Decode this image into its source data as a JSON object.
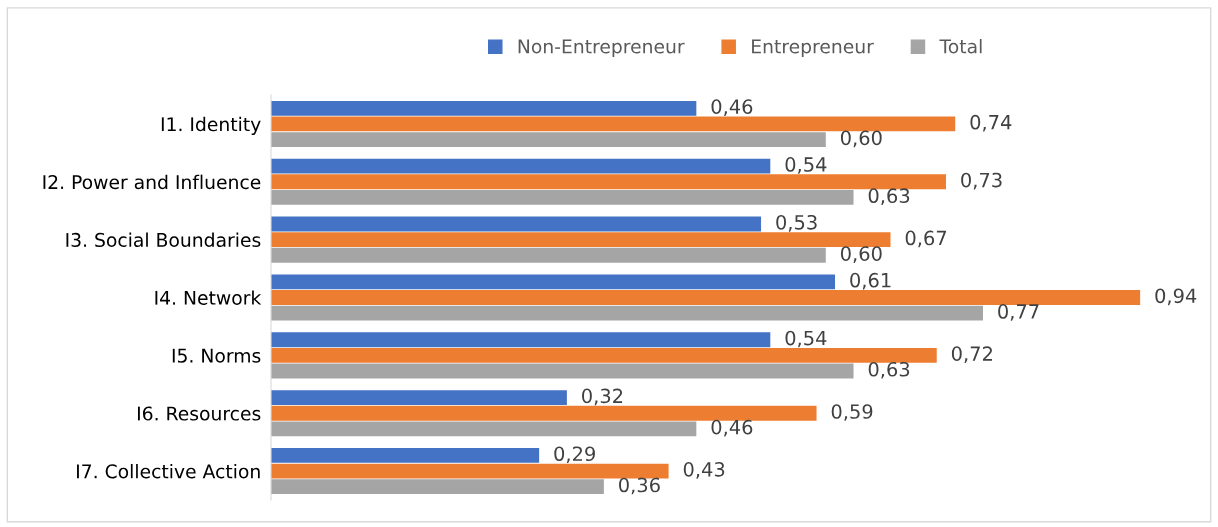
{
  "chart_data": {
    "type": "bar",
    "orientation": "horizontal",
    "categories": [
      "I1. Identity",
      "I2. Power and Influence",
      "I3. Social Boundaries",
      "I4. Network",
      "I5. Norms",
      "I6. Resources",
      "I7. Collective Action"
    ],
    "series": [
      {
        "name": "Non-Entrepreneur",
        "color": "#4472c4",
        "values": [
          0.46,
          0.54,
          0.53,
          0.61,
          0.54,
          0.32,
          0.29
        ],
        "value_labels": [
          "0,46",
          "0,54",
          "0,53",
          "0,61",
          "0,54",
          "0,32",
          "0,29"
        ]
      },
      {
        "name": "Entrepreneur",
        "color": "#ed7d31",
        "values": [
          0.74,
          0.73,
          0.67,
          0.94,
          0.72,
          0.59,
          0.43
        ],
        "value_labels": [
          "0,74",
          "0,73",
          "0,67",
          "0,94",
          "0,72",
          "0,59",
          "0,43"
        ]
      },
      {
        "name": "Total",
        "color": "#a5a5a5",
        "values": [
          0.6,
          0.63,
          0.6,
          0.77,
          0.63,
          0.46,
          0.36
        ],
        "value_labels": [
          "0,60",
          "0,63",
          "0,60",
          "0,77",
          "0,63",
          "0,46",
          "0,36"
        ]
      }
    ],
    "legend": "top",
    "grid": false,
    "tick_labels": "y"
  }
}
